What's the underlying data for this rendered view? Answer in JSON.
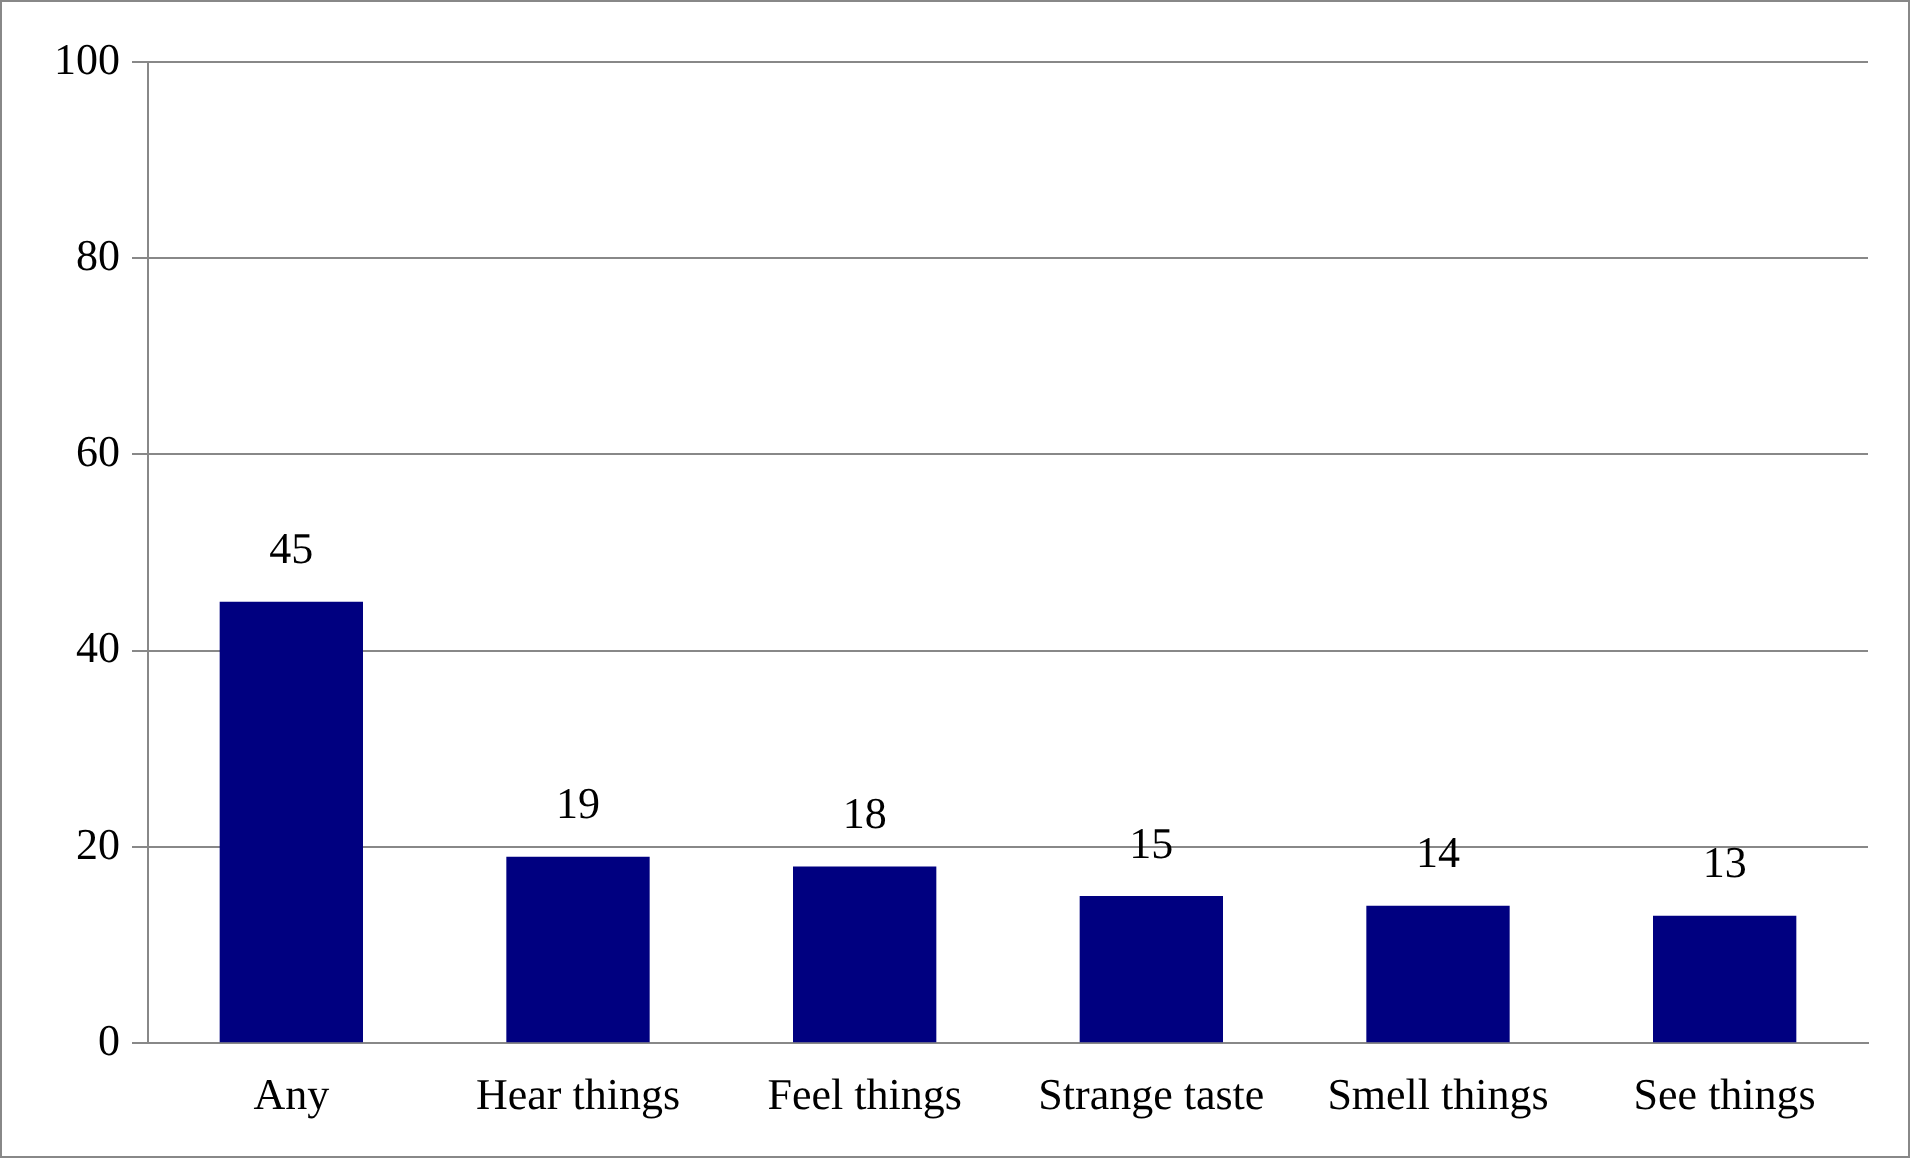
{
  "chart_data": {
    "type": "bar",
    "categories": [
      "Any",
      "Hear things",
      "Feel things",
      "Strange taste",
      "Smell things",
      "See things"
    ],
    "values": [
      45,
      19,
      18,
      15,
      14,
      13
    ],
    "color": "#000080",
    "ylim": [
      0,
      100
    ],
    "yticks": [
      0,
      20,
      40,
      60,
      80,
      100
    ],
    "grid": "y",
    "data_labels": true,
    "legend": false
  }
}
